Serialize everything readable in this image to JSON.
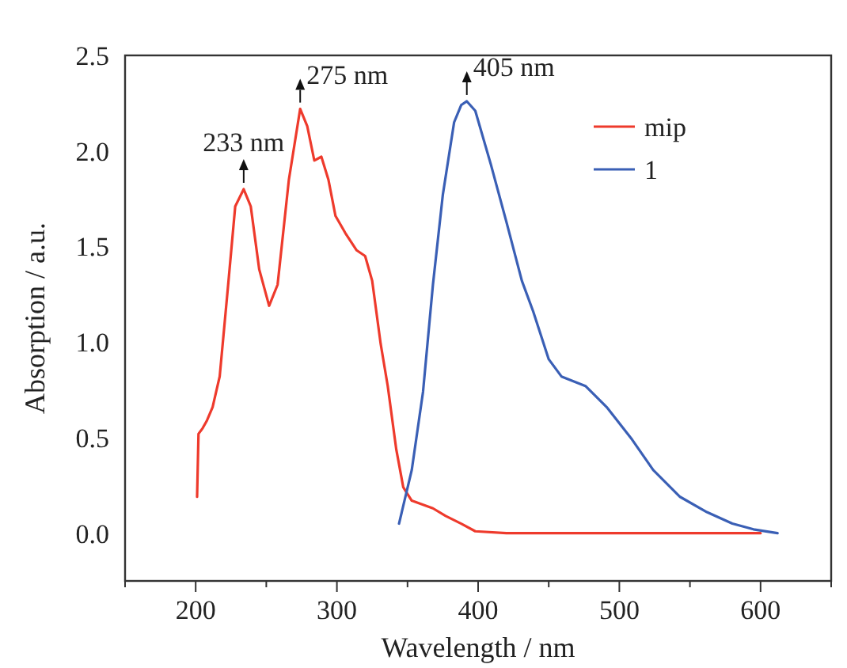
{
  "chart_data": {
    "type": "line",
    "xlabel": "Wavelength / nm",
    "ylabel": "Absorption / a.u.",
    "xlim": [
      150,
      650
    ],
    "xticks": [
      {
        "value": 150,
        "label": null
      },
      200,
      {
        "value": 250,
        "label": null
      },
      300,
      {
        "value": 350,
        "label": null
      },
      400,
      {
        "value": 450,
        "label": null
      },
      500,
      {
        "value": 550,
        "label": null
      },
      600,
      {
        "value": 650,
        "label": null
      }
    ],
    "ylim": [
      -0.25,
      2.5
    ],
    "yticks": [
      "0.0",
      0.5,
      "1.0",
      1.5,
      "2.0",
      2.5
    ],
    "legend": "top right",
    "grid": false,
    "line_style": "solid",
    "series": [
      {
        "name": "mip",
        "color": "#ee3a2c",
        "x": [
          201,
          202,
          205,
          208,
          212,
          217,
          223,
          228,
          234,
          239,
          245,
          252,
          258,
          266,
          274,
          279,
          284,
          289,
          294,
          299,
          306,
          314,
          320,
          325,
          331,
          336,
          342,
          347,
          353,
          368,
          377,
          388,
          398,
          420,
          500,
          600
        ],
        "values": [
          0.19,
          0.52,
          0.55,
          0.59,
          0.66,
          0.82,
          1.3,
          1.71,
          1.8,
          1.71,
          1.38,
          1.19,
          1.3,
          1.85,
          2.22,
          2.13,
          1.95,
          1.97,
          1.85,
          1.66,
          1.57,
          1.48,
          1.45,
          1.32,
          0.99,
          0.77,
          0.44,
          0.24,
          0.17,
          0.13,
          0.09,
          0.05,
          0.01,
          0,
          0,
          0
        ]
      },
      {
        "name": "1",
        "color": "#3a5fb5",
        "x": [
          344,
          353,
          361,
          368,
          375,
          383,
          388,
          392,
          398,
          409,
          420,
          431,
          439,
          450,
          459,
          476,
          491,
          509,
          524,
          543,
          562,
          580,
          595,
          612
        ],
        "values": [
          0.05,
          0.33,
          0.74,
          1.3,
          1.77,
          2.15,
          2.24,
          2.26,
          2.21,
          1.93,
          1.63,
          1.32,
          1.16,
          0.91,
          0.82,
          0.77,
          0.66,
          0.49,
          0.33,
          0.19,
          0.11,
          0.05,
          0.02,
          0
        ]
      }
    ],
    "annotations": [
      {
        "text": "233 nm",
        "x": 234,
        "y": 1.8
      },
      {
        "text": "275 nm",
        "x": 274,
        "y": 2.22
      },
      {
        "text": "405 nm",
        "x": 392,
        "y": 2.26
      }
    ]
  }
}
